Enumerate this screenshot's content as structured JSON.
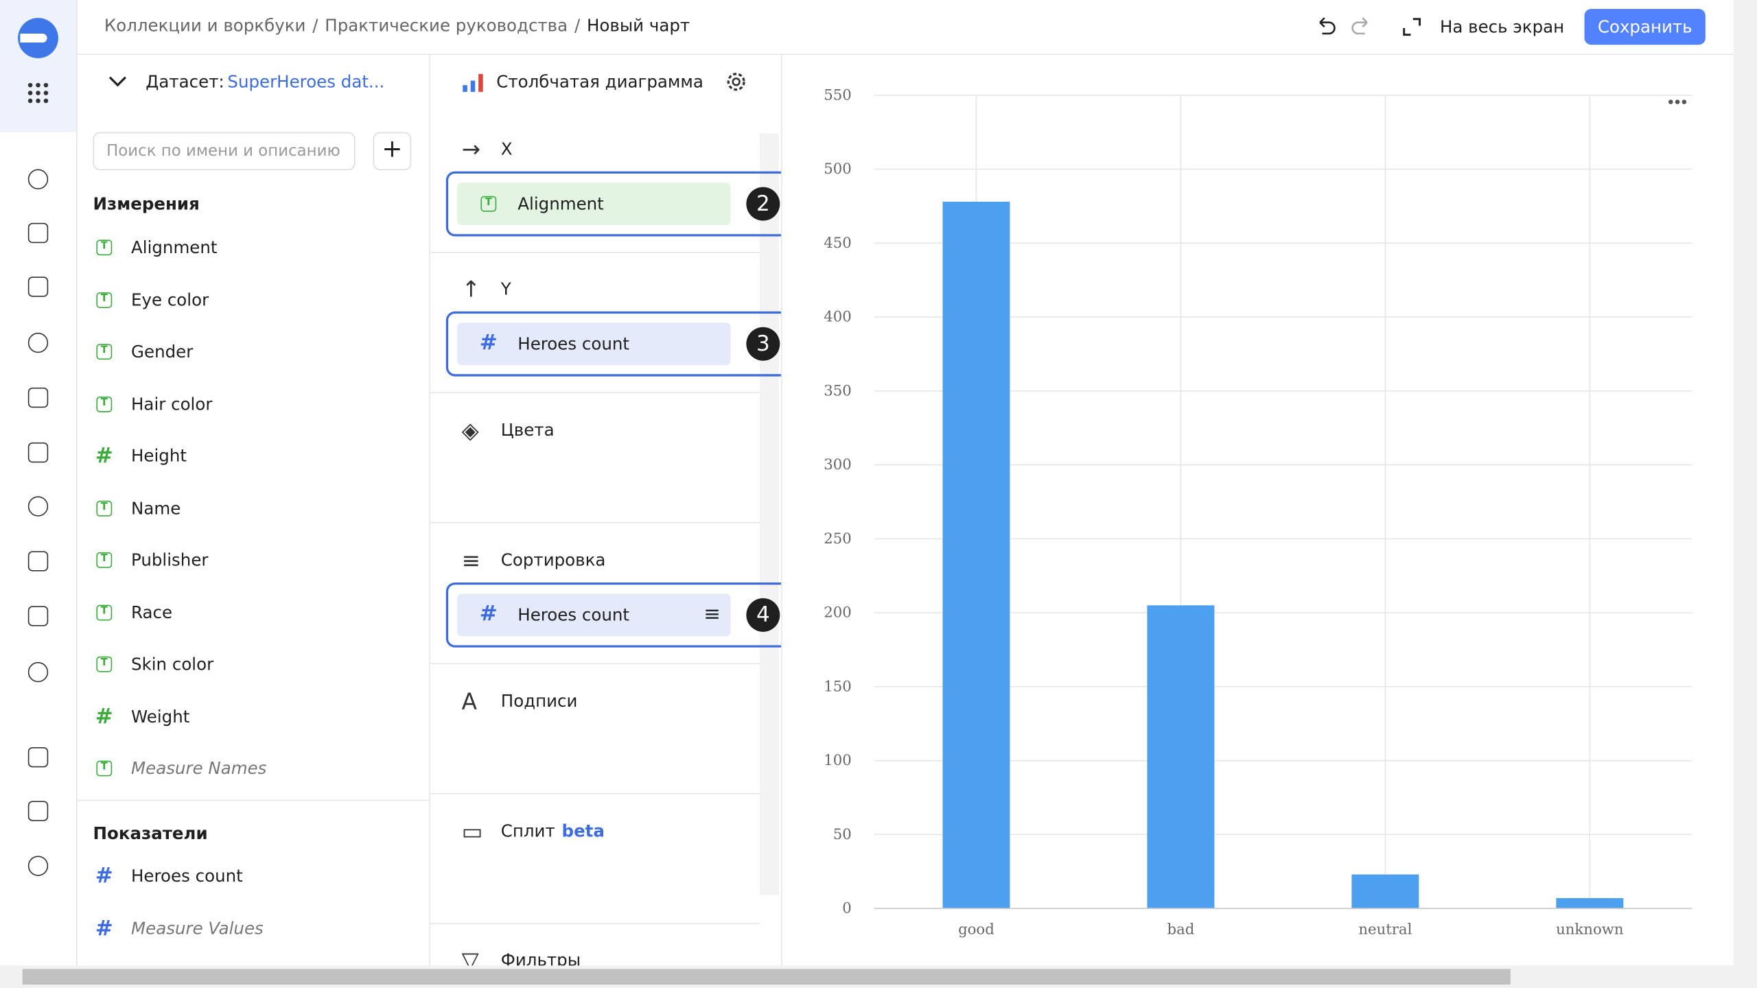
{
  "header": {
    "breadcrumbs": [
      "Коллекции и воркбуки",
      "Практические руководства",
      "Новый чарт"
    ],
    "separator": "/",
    "fullscreen": "На весь экран",
    "save": "Сохранить"
  },
  "dataset": {
    "label": "Датасет:",
    "name": "SuperHeroes dat...",
    "search_placeholder": "Поиск по имени и описанию",
    "dimensions_title": "Измерения",
    "dimensions": [
      {
        "name": "Alignment",
        "icon": "text"
      },
      {
        "name": "Eye color",
        "icon": "text"
      },
      {
        "name": "Gender",
        "icon": "text"
      },
      {
        "name": "Hair color",
        "icon": "text"
      },
      {
        "name": "Height",
        "icon": "number"
      },
      {
        "name": "Name",
        "icon": "text"
      },
      {
        "name": "Publisher",
        "icon": "text"
      },
      {
        "name": "Race",
        "icon": "text"
      },
      {
        "name": "Skin color",
        "icon": "text"
      },
      {
        "name": "Weight",
        "icon": "number"
      },
      {
        "name": "Measure Names",
        "icon": "text",
        "italic": true
      }
    ],
    "measures_title": "Показатели",
    "measures": [
      {
        "name": "Heroes count",
        "icon": "number"
      },
      {
        "name": "Measure Values",
        "icon": "number",
        "italic": true
      }
    ]
  },
  "wizard": {
    "chart_type": "Столбчатая диаграмма",
    "sections": [
      {
        "title": "X",
        "chip": "Alignment",
        "badge": "2"
      },
      {
        "title": "Y",
        "chip": "Heroes count",
        "badge": "3"
      },
      {
        "title": "Цвета"
      },
      {
        "title": "Сортировка",
        "chip": "Heroes count",
        "badge": "4"
      },
      {
        "title": "Подписи"
      },
      {
        "title": "Сплит",
        "tag": "beta"
      },
      {
        "title": "Фильтры"
      }
    ]
  },
  "chart_data": {
    "type": "bar",
    "categories": [
      "good",
      "bad",
      "neutral",
      "unknown"
    ],
    "values": [
      478,
      205,
      23,
      7
    ],
    "color": "#4d9ff0",
    "ylim": [
      0,
      550
    ],
    "yticks": [
      0,
      50,
      100,
      150,
      200,
      250,
      300,
      350,
      400,
      450,
      500,
      550
    ],
    "grid": true
  }
}
